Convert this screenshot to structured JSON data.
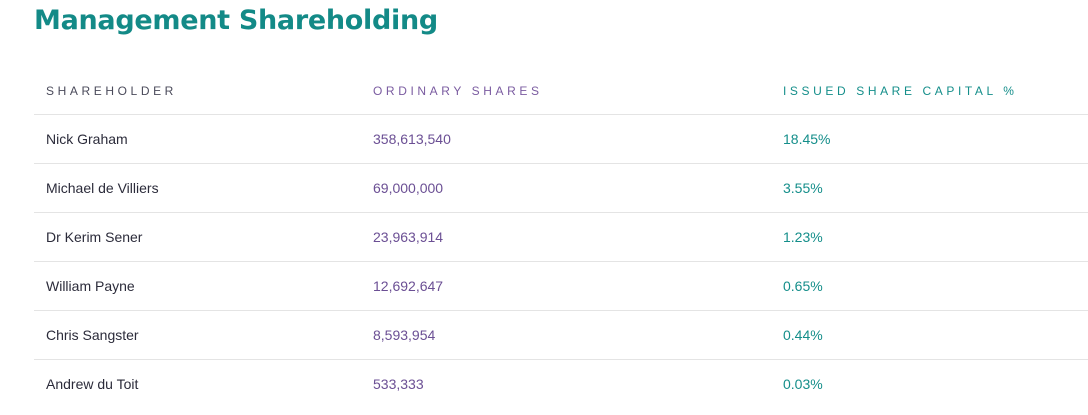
{
  "page": {
    "title": "Management Shareholding"
  },
  "table": {
    "headers": {
      "shareholder": "SHAREHOLDER",
      "ordinary_shares": "ORDINARY SHARES",
      "issued_share_capital": "ISSUED SHARE CAPITAL %"
    },
    "rows": [
      {
        "shareholder": "Nick Graham",
        "ordinary_shares": "358,613,540",
        "issued_share_capital": "18.45%"
      },
      {
        "shareholder": "Michael de Villiers",
        "ordinary_shares": "69,000,000",
        "issued_share_capital": "3.55%"
      },
      {
        "shareholder": "Dr Kerim Sener",
        "ordinary_shares": "23,963,914",
        "issued_share_capital": "1.23%"
      },
      {
        "shareholder": "William Payne",
        "ordinary_shares": "12,692,647",
        "issued_share_capital": "0.65%"
      },
      {
        "shareholder": "Chris Sangster",
        "ordinary_shares": "8,593,954",
        "issued_share_capital": "0.44%"
      },
      {
        "shareholder": "Andrew du Toit",
        "ordinary_shares": "533,333",
        "issued_share_capital": "0.03%"
      }
    ]
  },
  "colors": {
    "title": "#138a87",
    "shares_accent": "#6b4f94",
    "capital_accent": "#148e8a",
    "divider": "#e4e4e4"
  }
}
